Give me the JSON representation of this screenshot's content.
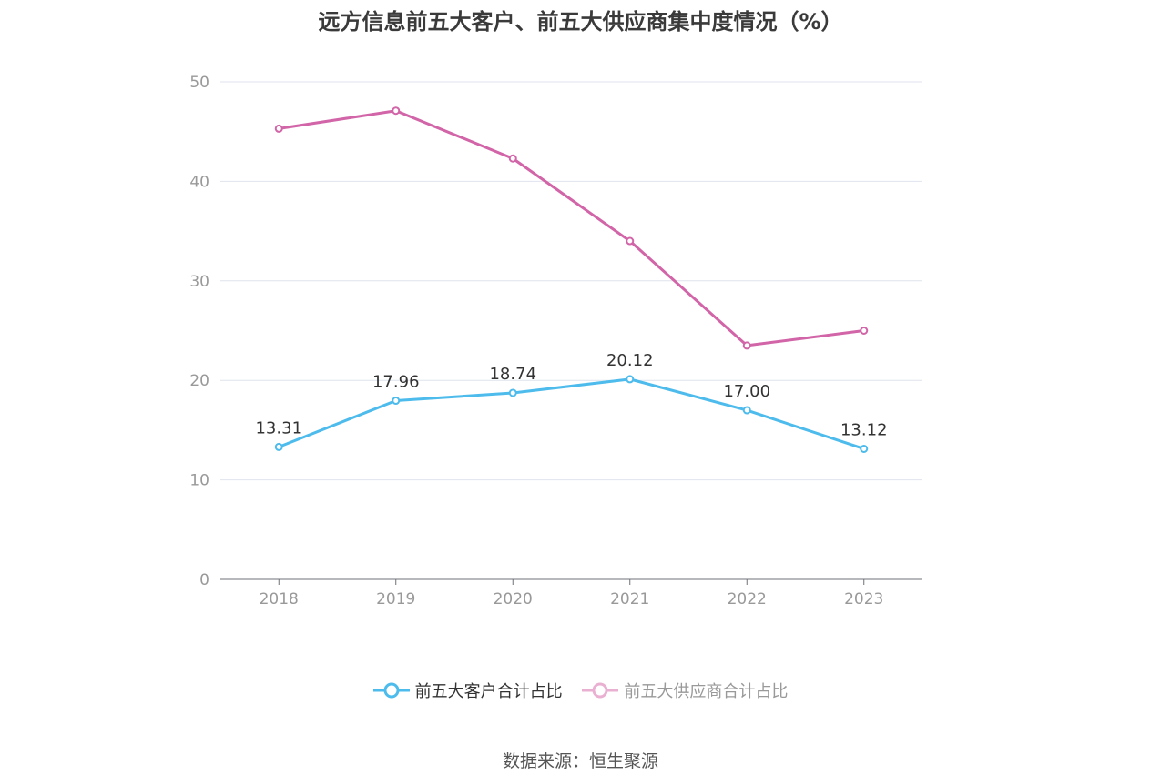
{
  "title": "远方信息前五大客户、前五大供应商集中度情况（%）",
  "source": "数据来源：恒生聚源",
  "chart_data": {
    "type": "line",
    "categories": [
      "2018",
      "2019",
      "2020",
      "2021",
      "2022",
      "2023"
    ],
    "ylim": [
      0,
      50
    ],
    "yticks": [
      0,
      10,
      20,
      30,
      40,
      50
    ],
    "grid": true,
    "legend_position": "bottom",
    "series": [
      {
        "name": "前五大客户合计占比",
        "color": "#4dbbec",
        "values": [
          13.31,
          17.96,
          18.74,
          20.12,
          17.0,
          13.12
        ],
        "labels": [
          "13.31",
          "17.96",
          "18.74",
          "20.12",
          "17.00",
          "13.12"
        ],
        "show_labels": true
      },
      {
        "name": "前五大供应商合计占比",
        "color": "#d264a8",
        "values": [
          45.3,
          47.1,
          42.3,
          34.0,
          23.5,
          25.0
        ],
        "show_labels": false
      }
    ]
  }
}
